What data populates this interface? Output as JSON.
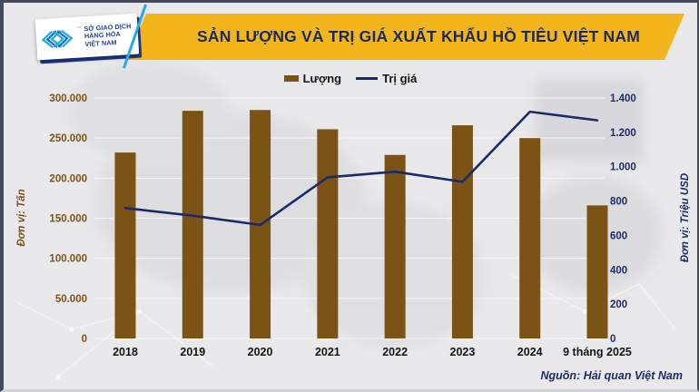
{
  "header": {
    "title": "SẢN LƯỢNG VÀ TRỊ GIÁ XUẤT KHẨU HỒ TIÊU VIỆT NAM",
    "logo": {
      "org_lines": [
        "SỞ GIAO DỊCH",
        "HÀNG HÓA",
        "VIỆT NAM"
      ],
      "tm": "™"
    }
  },
  "legend": {
    "items": [
      {
        "label": "Lượng",
        "type": "bar"
      },
      {
        "label": "Trị giá",
        "type": "line"
      }
    ]
  },
  "chart_data": {
    "type": "bar+line",
    "title": "SẢN LƯỢNG VÀ TRỊ GIÁ XUẤT KHẨU HỒ TIÊU VIỆT NAM",
    "categories": [
      "2018",
      "2019",
      "2020",
      "2021",
      "2022",
      "2023",
      "2024",
      "9 tháng 2025"
    ],
    "series": [
      {
        "name": "Lượng",
        "type": "bar",
        "axis": "left",
        "color": "#7a5315",
        "values": [
          232000,
          284000,
          285000,
          261000,
          229000,
          266000,
          250000,
          166000
        ]
      },
      {
        "name": "Trị giá",
        "type": "line",
        "axis": "right",
        "color": "#1a2a6b",
        "values": [
          759,
          715,
          661,
          938,
          971,
          912,
          1320,
          1270
        ]
      }
    ],
    "left_axis": {
      "label": "Đơn vị: Tấn",
      "min": 0,
      "max": 300000,
      "step": 50000,
      "tick_labels": [
        "300.000",
        "250.000",
        "200.000",
        "150.000",
        "100.000",
        "50.000",
        "0"
      ]
    },
    "right_axis": {
      "label": "Đơn vị: Triệu USD",
      "min": 0,
      "max": 1400,
      "step": 200,
      "tick_labels": [
        "1.400",
        "1.200",
        "1.000",
        "800",
        "600",
        "400",
        "200",
        "0"
      ]
    },
    "grid": true,
    "legend_position": "top"
  },
  "footer": {
    "source": "Nguồn: Hải quan Việt Nam"
  },
  "colors": {
    "banner_gold": "#f2b51c",
    "title_navy": "#1b2a5e",
    "bar_brown": "#7a5315",
    "line_navy": "#1a2a6b",
    "left_axis_text": "#7d521b",
    "right_axis_text": "#1b2d6b",
    "background": "#e9e9eb",
    "logo_cyan": "#29abe2",
    "logo_blue": "#1b75bc"
  }
}
